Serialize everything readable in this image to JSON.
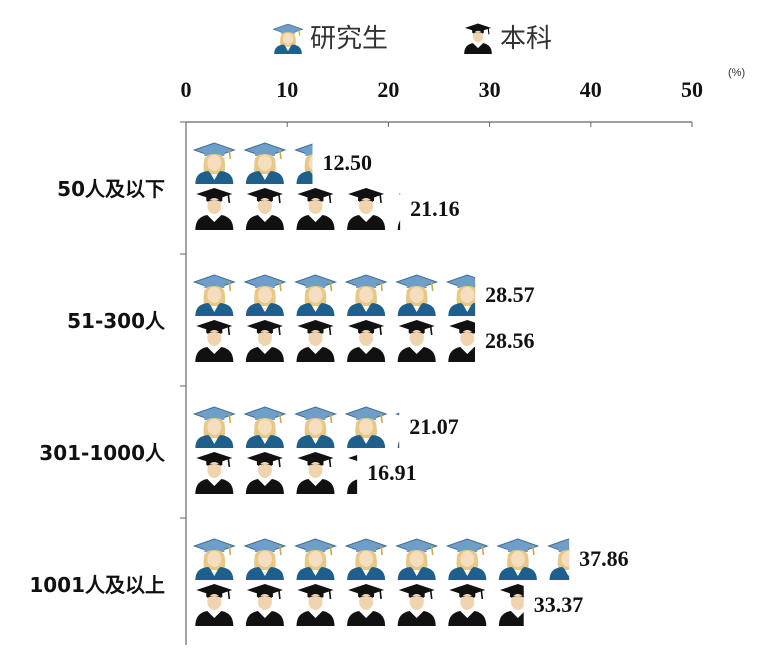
{
  "chart_data": {
    "type": "bar",
    "orientation": "horizontal",
    "style": "pictogram",
    "categories": [
      "50人及以下",
      "51-300人",
      "301-1000人",
      "1001人及以上"
    ],
    "series": [
      {
        "name": "研究生",
        "icon": "graduate-female-icon",
        "color": "#1f5f8b",
        "values": [
          12.5,
          28.57,
          21.07,
          37.86
        ]
      },
      {
        "name": "本科",
        "icon": "graduate-male-icon",
        "color": "#111111",
        "values": [
          21.16,
          28.56,
          16.91,
          33.37
        ]
      }
    ],
    "value_labels": [
      [
        "12.50",
        "28.57",
        "21.07",
        "37.86"
      ],
      [
        "21.16",
        "28.56",
        "16.91",
        "33.37"
      ]
    ],
    "x_ticks": [
      "0",
      "10",
      "20",
      "30",
      "40",
      "50"
    ],
    "xlim": [
      0,
      50
    ],
    "x_axis_position": "top",
    "unit_label": "(%)",
    "legend_position": "top",
    "grid": false
  }
}
